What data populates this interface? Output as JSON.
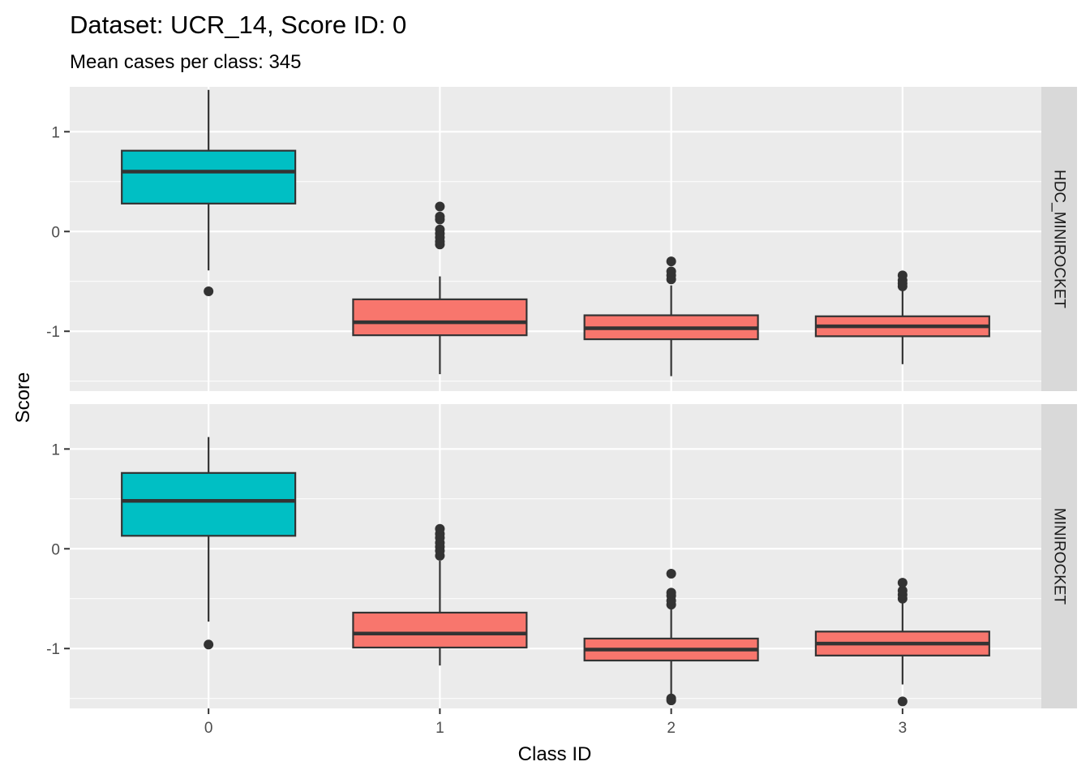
{
  "chart_data": {
    "type": "boxplot",
    "title": "Dataset: UCR_14, Score ID: 0",
    "subtitle": "Mean cases per class: 345",
    "xlabel": "Class ID",
    "ylabel": "Score",
    "categories": [
      "0",
      "1",
      "2",
      "3"
    ],
    "ylim": [
      -1.6,
      1.45
    ],
    "yticks": [
      1,
      0,
      -1
    ],
    "ytick_labels": [
      "1",
      "0",
      "-1"
    ],
    "grid": true,
    "legend": "none",
    "colors": {
      "target": "#00BFC4",
      "other": "#F8766D",
      "panel": "#EBEBEB",
      "strip": "#D9D9D9",
      "grid": "#FFFFFF",
      "box_line": "#333333"
    },
    "panels": [
      {
        "label": "HDC_MINIROCKET",
        "boxes": [
          {
            "class": "0",
            "group": "target",
            "whisker_low": -0.39,
            "q1": 0.28,
            "median": 0.6,
            "q3": 0.81,
            "whisker_high": 1.42,
            "outliers": [
              -0.6
            ]
          },
          {
            "class": "1",
            "group": "other",
            "whisker_low": -1.43,
            "q1": -1.04,
            "median": -0.91,
            "q3": -0.68,
            "whisker_high": -0.45,
            "outliers": [
              -0.13,
              -0.1,
              -0.06,
              -0.02,
              0.02,
              0.12,
              0.15,
              0.25
            ]
          },
          {
            "class": "2",
            "group": "other",
            "whisker_low": -1.45,
            "q1": -1.08,
            "median": -0.97,
            "q3": -0.84,
            "whisker_high": -0.54,
            "outliers": [
              -0.48,
              -0.44,
              -0.4,
              -0.3
            ]
          },
          {
            "class": "3",
            "group": "other",
            "whisker_low": -1.33,
            "q1": -1.05,
            "median": -0.95,
            "q3": -0.85,
            "whisker_high": -0.58,
            "outliers": [
              -0.55,
              -0.52,
              -0.49,
              -0.44
            ]
          }
        ]
      },
      {
        "label": "MINIROCKET",
        "boxes": [
          {
            "class": "0",
            "group": "target",
            "whisker_low": -0.73,
            "q1": 0.13,
            "median": 0.48,
            "q3": 0.76,
            "whisker_high": 1.12,
            "outliers": [
              -0.96
            ]
          },
          {
            "class": "1",
            "group": "other",
            "whisker_low": -1.17,
            "q1": -0.99,
            "median": -0.85,
            "q3": -0.64,
            "whisker_high": -0.12,
            "outliers": [
              -0.07,
              -0.02,
              0.02,
              0.06,
              0.11,
              0.15,
              0.2
            ]
          },
          {
            "class": "2",
            "group": "other",
            "whisker_low": -1.47,
            "q1": -1.12,
            "median": -1.01,
            "q3": -0.9,
            "whisker_high": -0.59,
            "outliers": [
              -0.56,
              -0.52,
              -0.47,
              -0.44,
              -0.25,
              -1.5,
              -1.52
            ]
          },
          {
            "class": "3",
            "group": "other",
            "whisker_low": -1.36,
            "q1": -1.07,
            "median": -0.95,
            "q3": -0.83,
            "whisker_high": -0.53,
            "outliers": [
              -0.5,
              -0.46,
              -0.42,
              -0.34,
              -1.53
            ]
          }
        ]
      }
    ]
  }
}
